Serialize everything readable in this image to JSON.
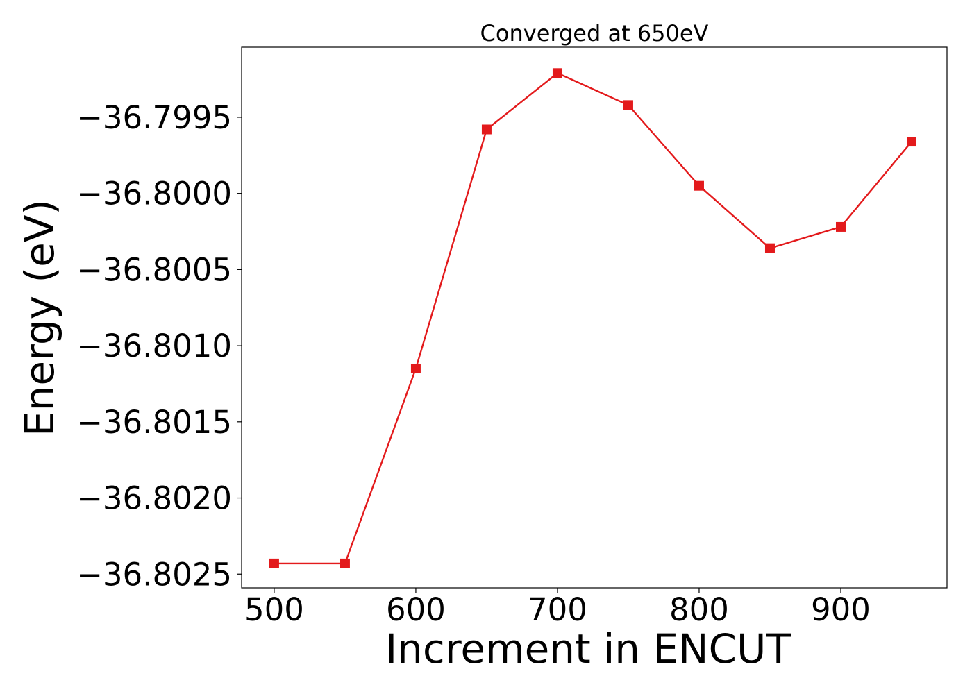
{
  "chart_data": {
    "type": "line",
    "title": "Converged at 650eV",
    "xlabel": "Increment in ENCUT",
    "ylabel": "Energy (eV)",
    "x": [
      500,
      550,
      600,
      650,
      700,
      750,
      800,
      850,
      900,
      950
    ],
    "series": [
      {
        "values": [
          -36.80243,
          -36.80243,
          -36.80115,
          -36.79958,
          -36.79921,
          -36.79942,
          -36.79995,
          -36.80036,
          -36.80022,
          -36.79966
        ],
        "color": "#e31a1c",
        "marker": "square"
      }
    ],
    "xlim": [
      477,
      975
    ],
    "ylim": [
      -36.80259,
      -36.79904
    ],
    "xticks": [
      500,
      600,
      700,
      800,
      900
    ],
    "xtick_labels": [
      "500",
      "600",
      "700",
      "800",
      "900"
    ],
    "yticks": [
      -36.7995,
      -36.8,
      -36.8005,
      -36.801,
      -36.8015,
      -36.802,
      -36.8025
    ],
    "ytick_labels": [
      "−36.7995",
      "−36.8000",
      "−36.8005",
      "−36.8010",
      "−36.8015",
      "−36.8020",
      "−36.8025"
    ],
    "grid": false,
    "legend": false
  }
}
